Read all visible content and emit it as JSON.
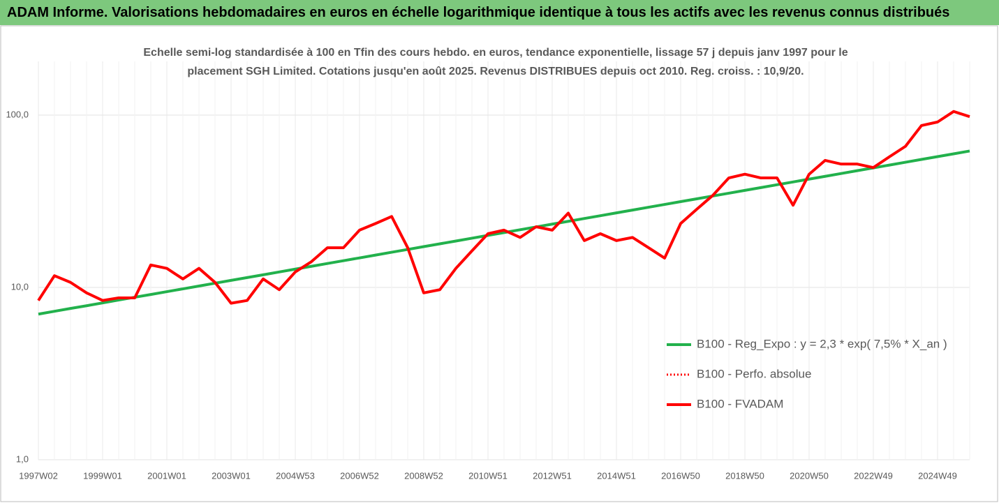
{
  "header": {
    "title": "ADAM Informe. Valorisations hebdomadaires en euros en échelle logarithmique identique à tous les actifs avec les revenus connus distribués"
  },
  "chart_data": {
    "type": "line",
    "title": "Echelle semi-log standardisée à 100 en Tfin des cours hebdo. en euros, tendance exponentielle, lissage 57 j depuis janv 1997 pour le placement SGH Limited. Cotations jusqu'en août 2025.  Revenus DISTRIBUES depuis oct 2010. Reg. croiss. : 10,9/20.",
    "log_scale": true,
    "grid": true,
    "legend": "right",
    "ylim": [
      1,
      205
    ],
    "yticks": [
      {
        "value": 1,
        "label": "1,0"
      },
      {
        "value": 10,
        "label": "10,0"
      },
      {
        "value": 100,
        "label": "100,0"
      }
    ],
    "categories": [
      "1997W02",
      null,
      null,
      null,
      "1999W01",
      null,
      null,
      null,
      "2001W01",
      null,
      null,
      null,
      "2003W01",
      null,
      null,
      null,
      "2004W53",
      null,
      null,
      null,
      "2006W52",
      null,
      null,
      null,
      "2008W52",
      null,
      null,
      null,
      "2010W51",
      null,
      null,
      null,
      "2012W51",
      null,
      null,
      null,
      "2014W51",
      null,
      null,
      null,
      "2016W50",
      null,
      null,
      null,
      "2018W50",
      null,
      null,
      null,
      "2020W50",
      null,
      null,
      null,
      "2022W49",
      null,
      null,
      null,
      "2024W49",
      null,
      null
    ],
    "series": [
      {
        "name": "B100 - Reg_Expo : y = 2,3 * exp( 7,5% *  X_an )",
        "color": "#22b14c",
        "style": "solid",
        "values": [
          7.0,
          7.27,
          7.55,
          7.83,
          8.13,
          8.45,
          8.77,
          9.1,
          9.45,
          9.81,
          10.19,
          10.58,
          10.99,
          11.41,
          11.84,
          12.3,
          12.77,
          13.26,
          13.77,
          14.29,
          14.84,
          15.41,
          16.0,
          16.61,
          17.25,
          17.91,
          18.59,
          19.31,
          20.05,
          20.81,
          21.61,
          22.44,
          23.3,
          24.19,
          25.12,
          26.08,
          27.08,
          28.12,
          29.19,
          30.31,
          31.47,
          32.68,
          33.93,
          35.23,
          36.58,
          37.98,
          39.43,
          40.94,
          42.51,
          44.14,
          45.83,
          47.59,
          49.41,
          51.3,
          53.27,
          55.31,
          57.43,
          59.62,
          61.91
        ]
      },
      {
        "name": "B100 - Perfo. absolue",
        "color": "#ff0000",
        "style": "dotted",
        "values": [
          8.4,
          11.7,
          10.7,
          9.3,
          8.4,
          8.7,
          8.7,
          13.5,
          12.9,
          11.2,
          12.9,
          10.7,
          8.1,
          8.4,
          11.2,
          9.7,
          12.3,
          14.1,
          17.0,
          17.0,
          21.5,
          23.5,
          25.8,
          17.0,
          9.3,
          9.7,
          12.9,
          16.3,
          20.5,
          21.5,
          19.5,
          22.5,
          21.5,
          27.0,
          18.7,
          20.5,
          18.7,
          19.5,
          17.0,
          14.8,
          23.5,
          28.4,
          34.2,
          43.2,
          45.4,
          43.2,
          43.2,
          30.0,
          45.4,
          54.6,
          52.0,
          52.0,
          49.6,
          57.3,
          65.9,
          87.0,
          91.2,
          105,
          98
        ]
      },
      {
        "name": "B100 - FVADAM",
        "color": "#ff0000",
        "style": "solid",
        "values": [
          8.4,
          11.7,
          10.7,
          9.3,
          8.4,
          8.7,
          8.7,
          13.5,
          12.9,
          11.2,
          12.9,
          10.7,
          8.1,
          8.4,
          11.2,
          9.7,
          12.3,
          14.1,
          17.0,
          17.0,
          21.5,
          23.5,
          25.8,
          17.0,
          9.3,
          9.7,
          12.9,
          16.3,
          20.5,
          21.5,
          19.5,
          22.5,
          21.5,
          27.0,
          18.7,
          20.5,
          18.7,
          19.5,
          17.0,
          14.8,
          23.5,
          28.4,
          34.2,
          43.2,
          45.4,
          43.2,
          43.2,
          30.0,
          45.4,
          54.6,
          52.0,
          52.0,
          49.6,
          57.3,
          65.9,
          87.0,
          91.2,
          105,
          98
        ]
      }
    ]
  }
}
